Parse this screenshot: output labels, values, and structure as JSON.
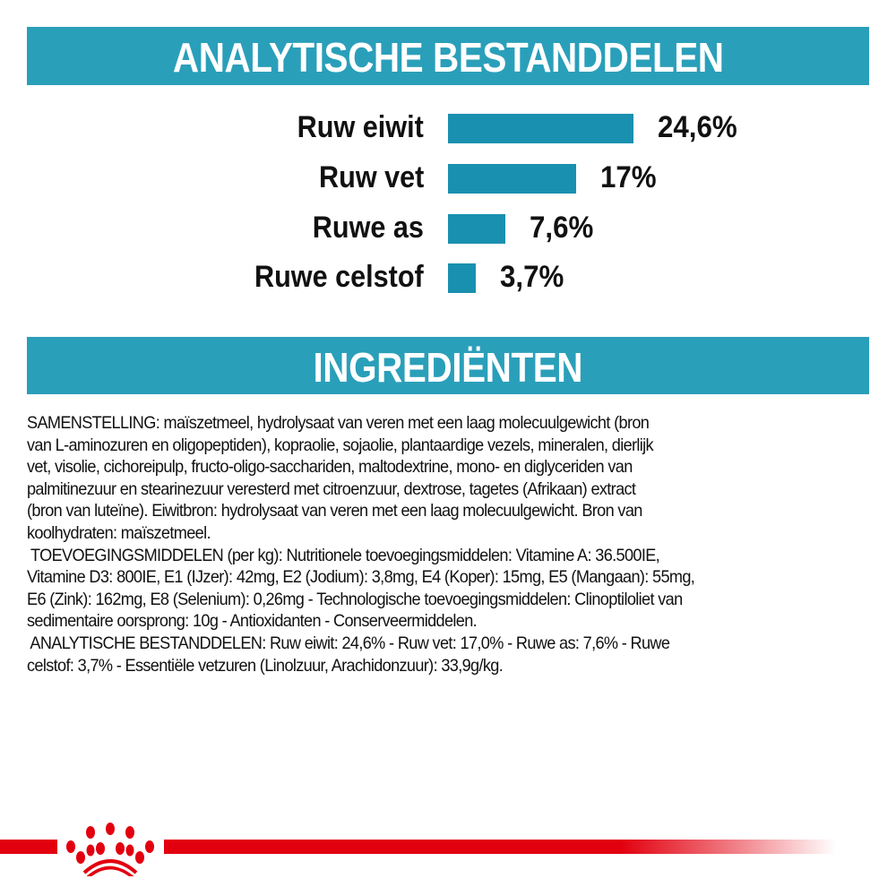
{
  "analytic_section": {
    "title": "ANALYTISCHE BESTANDDELEN",
    "bar_color": "#1a90b0",
    "items": [
      {
        "label": "Ruw eiwit",
        "value": 24.6,
        "display": "24,6%"
      },
      {
        "label": "Ruw vet",
        "value": 17,
        "display": "17%"
      },
      {
        "label": "Ruwe as",
        "value": 7.6,
        "display": "7,6%"
      },
      {
        "label": "Ruwe celstof",
        "value": 3.7,
        "display": "3,7%"
      }
    ]
  },
  "chart_data": {
    "type": "bar",
    "orientation": "horizontal",
    "categories": [
      "Ruw eiwit",
      "Ruw vet",
      "Ruwe as",
      "Ruwe celstof"
    ],
    "values": [
      24.6,
      17,
      7.6,
      3.7
    ],
    "unit": "%"
  },
  "ingredients_section": {
    "title": "INGREDIËNTEN",
    "lines": [
      "SAMENSTELLING: maïszetmeel, hydrolysaat van veren met een laag molecuulgewicht (bron",
      "van L-aminozuren en oligopeptiden), kopraolie, sojaolie, plantaardige vezels, mineralen, dierlijk",
      "vet, visolie, cichoreipulp, fructo-oligo-sacchariden, maltodextrine, mono- en diglyceriden van",
      "palmitinezuur en stearinezuur veresterd met citroenzuur, dextrose, tagetes (Afrikaan) extract",
      "(bron van luteïne). Eiwitbron: hydrolysaat van veren met een laag molecuulgewicht. Bron van",
      "koolhydraten: maïszetmeel.",
      " TOEVOEGINGSMIDDELEN (per kg): Nutritionele toevoegingsmiddelen: Vitamine A: 36.500IE,",
      "Vitamine D3: 800IE, E1 (IJzer): 42mg, E2 (Jodium): 3,8mg, E4 (Koper): 15mg, E5 (Mangaan): 55mg,",
      "E6 (Zink): 162mg, E8 (Selenium): 0,26mg - Technologische toevoegingsmiddelen: Clinoptiloliet van",
      "sedimentaire oorsprong: 10g - Antioxidanten - Conserveermiddelen.",
      " ANALYTISCHE BESTANDDELEN: Ruw eiwit: 24,6% - Ruw vet: 17,0% - Ruwe as: 7,6% - Ruwe",
      "celstof: 3,7% - Essentiële vetzuren (Linolzuur, Arachidonzuur): 33,9g/kg."
    ]
  },
  "footer": {
    "logo": "royal-canin-crown-logo",
    "brand_color": "#e2000f"
  },
  "colors": {
    "header_band": "#2a9fba"
  }
}
